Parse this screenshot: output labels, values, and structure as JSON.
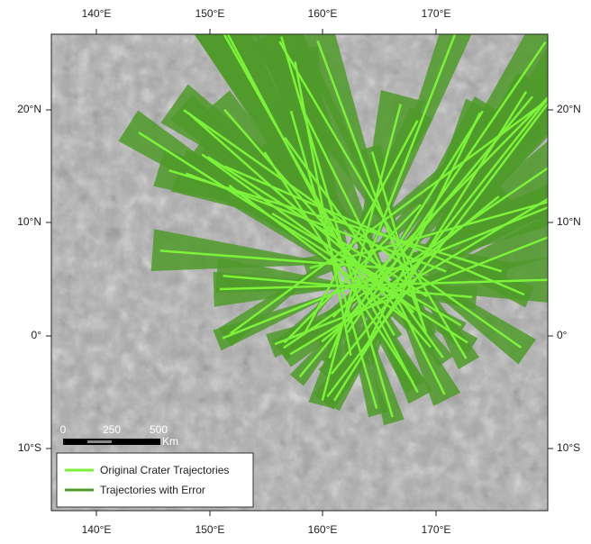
{
  "map": {
    "longitude_labels": [
      "140°E",
      "150°E",
      "160°E",
      "170°E"
    ],
    "latitude_labels": [
      "20°N",
      "10°N",
      "0°",
      "10°S"
    ],
    "scale_bar": {
      "labels": [
        "0",
        "250",
        "500"
      ],
      "unit": "Km"
    },
    "legend": {
      "items": [
        {
          "name": "Original Crater Trajectories",
          "color": "#7df23a"
        },
        {
          "name": "Trajectories with Error",
          "color": "#4f9a2a"
        }
      ]
    }
  }
}
